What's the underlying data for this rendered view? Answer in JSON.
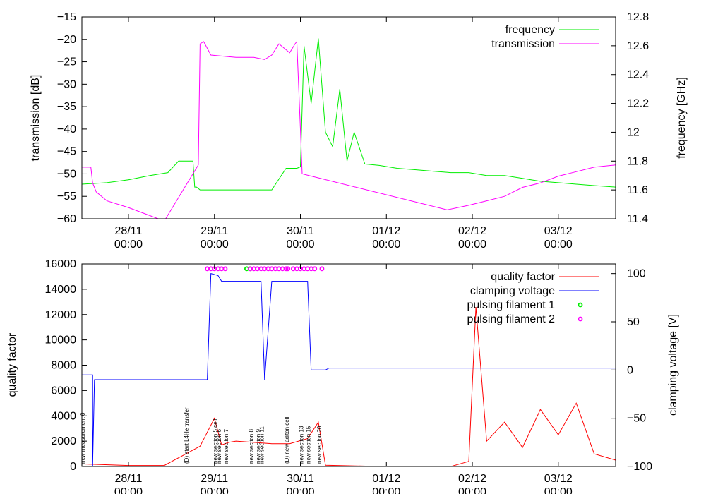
{
  "chart_data": [
    {
      "type": "line",
      "title": "",
      "xlabel": "",
      "x_ticks": [
        "28/11\n00:00",
        "29/11\n00:00",
        "30/11\n00:00",
        "01/12\n00:00",
        "02/12\n00:00",
        "03/12\n00:00"
      ],
      "x_tick_hours": [
        0,
        24,
        48,
        72,
        96,
        120
      ],
      "x_range_hours": [
        -13,
        136
      ],
      "ylabel": "transmission [dB]",
      "ylim": [
        -60,
        -15
      ],
      "y_ticks": [
        "-15",
        "-20",
        "-25",
        "-30",
        "-35",
        "-40",
        "-45",
        "-50",
        "-55",
        "-60"
      ],
      "y2label": "frequency [GHz]",
      "y2lim": [
        11.4,
        12.8
      ],
      "y2_ticks": [
        "12.8",
        "12.6",
        "12.4",
        "12.2",
        "12",
        "11.8",
        "11.6",
        "11.4"
      ],
      "legend_position": "top-right",
      "series": [
        {
          "name": "frequency",
          "axis": "right",
          "color": "#00ee00",
          "x": [
            -13,
            -6,
            0,
            6,
            11,
            14,
            18,
            18.5,
            19,
            20,
            25,
            30,
            35,
            40,
            44,
            47,
            48,
            49,
            51,
            53,
            55,
            57,
            59,
            61,
            63,
            66,
            70,
            75,
            80,
            85,
            90,
            95,
            100,
            105,
            110,
            115,
            120,
            125,
            130,
            136
          ],
          "y": [
            11.64,
            11.65,
            11.67,
            11.7,
            11.72,
            11.8,
            11.8,
            11.62,
            11.62,
            11.6,
            11.6,
            11.6,
            11.6,
            11.6,
            11.75,
            11.75,
            11.76,
            12.6,
            12.2,
            12.65,
            12.0,
            11.9,
            12.3,
            11.8,
            12.0,
            11.78,
            11.77,
            11.75,
            11.74,
            11.73,
            11.72,
            11.72,
            11.7,
            11.7,
            11.68,
            11.66,
            11.65,
            11.64,
            11.63,
            11.62
          ]
        },
        {
          "name": "transmission",
          "axis": "left",
          "color": "#ff00ff",
          "x": [
            -13,
            -10.5,
            -10,
            -9,
            -6,
            0,
            5,
            10,
            19.5,
            20,
            21,
            23,
            30,
            35,
            38,
            40,
            42,
            45,
            46.5,
            47,
            48,
            48.5,
            89,
            95,
            100,
            105,
            110,
            115,
            120,
            125,
            130,
            136
          ],
          "y": [
            -48.5,
            -48.5,
            -52,
            -54,
            -56,
            -57.5,
            -59,
            -60.5,
            -48,
            -21,
            -20.5,
            -23.5,
            -24,
            -24,
            -24.5,
            -23.5,
            -21,
            -23,
            -21,
            -20.5,
            -40,
            -50,
            -58,
            -57,
            -56,
            -55,
            -53,
            -52,
            -50.5,
            -49.5,
            -48.5,
            -48
          ]
        }
      ]
    },
    {
      "type": "line",
      "title": "",
      "xlabel": "",
      "x_ticks": [
        "28/11\n00:00",
        "29/11\n00:00",
        "30/11\n00:00",
        "01/12\n00:00",
        "02/12\n00:00",
        "03/12\n00:00"
      ],
      "x_tick_hours": [
        0,
        24,
        48,
        72,
        96,
        120
      ],
      "x_range_hours": [
        -13,
        136
      ],
      "ylabel": "quality factor",
      "ylim": [
        0,
        16000
      ],
      "y_ticks": [
        "16000",
        "14000",
        "12000",
        "10000",
        "8000",
        "6000",
        "4000",
        "2000",
        "0"
      ],
      "y2label": "clamping voltage [V]",
      "y2lim": [
        -100,
        110
      ],
      "y2_ticks": [
        "100",
        "50",
        "0",
        "-50",
        "-100"
      ],
      "legend_position": "top-right",
      "series": [
        {
          "name": "quality factor",
          "axis": "left",
          "color": "#ff0000",
          "x": [
            -13,
            -5,
            0,
            10,
            20,
            24,
            26,
            28,
            30,
            35,
            40,
            45,
            50,
            53,
            55,
            70,
            90,
            95,
            97,
            100,
            105,
            110,
            115,
            120,
            125,
            130,
            136
          ],
          "y": [
            200,
            120,
            80,
            80,
            1600,
            3800,
            1700,
            1900,
            2000,
            1900,
            1800,
            1800,
            2200,
            3500,
            100,
            0,
            0,
            400,
            12600,
            2000,
            3500,
            1500,
            4500,
            2500,
            5000,
            1000,
            500
          ]
        },
        {
          "name": "clamping voltage",
          "axis": "right",
          "color": "#0000ff",
          "x": [
            -13,
            -10,
            -10,
            -9.5,
            0,
            22,
            23,
            25,
            26,
            27,
            29,
            30,
            36,
            37,
            38,
            40,
            41,
            43,
            50,
            51,
            54,
            55,
            56,
            136
          ],
          "y": [
            -5,
            -5,
            -100,
            -10,
            -10,
            -10,
            100,
            98,
            92,
            92,
            92,
            92,
            92,
            92,
            -10,
            92,
            92,
            92,
            92,
            0,
            0,
            0,
            2,
            2
          ]
        },
        {
          "name": "pulsing filament 1",
          "axis": "right",
          "color": "#00ee00",
          "x": [
            33,
            34
          ],
          "y": [
            105,
            105
          ]
        },
        {
          "name": "pulsing filament 2",
          "axis": "right",
          "color": "#ff00ff",
          "x": [
            22,
            23,
            24,
            25,
            26,
            27,
            34,
            35,
            36,
            37,
            38,
            39,
            40,
            41,
            42,
            43,
            44,
            44.5,
            46,
            47,
            48,
            49,
            50,
            51,
            52,
            54
          ],
          "y": [
            105,
            105,
            105,
            105,
            105,
            105,
            105,
            105,
            105,
            105,
            105,
            105,
            105,
            105,
            105,
            105,
            105,
            105,
            105,
            105,
            105,
            105,
            105,
            105,
            105,
            105
          ]
        }
      ],
      "annotations": [
        {
          "text": "new measurement 0",
          "x_hour": -13
        },
        {
          "text": "(D) start L4He transfer",
          "x_hour": 16
        },
        {
          "text": "new section 5 cell",
          "x_hour": 24
        },
        {
          "text": "new section 6",
          "x_hour": 25
        },
        {
          "text": "new section 7",
          "x_hour": 27
        },
        {
          "text": "new section 8",
          "x_hour": 34
        },
        {
          "text": "new section 9",
          "x_hour": 36
        },
        {
          "text": "new section 11",
          "x_hour": 37
        },
        {
          "text": "(D) new aditon cell",
          "x_hour": 44
        },
        {
          "text": "new section 13",
          "x_hour": 48
        },
        {
          "text": "new section 15",
          "x_hour": 50
        },
        {
          "text": "new section 20",
          "x_hour": 53
        }
      ]
    }
  ]
}
